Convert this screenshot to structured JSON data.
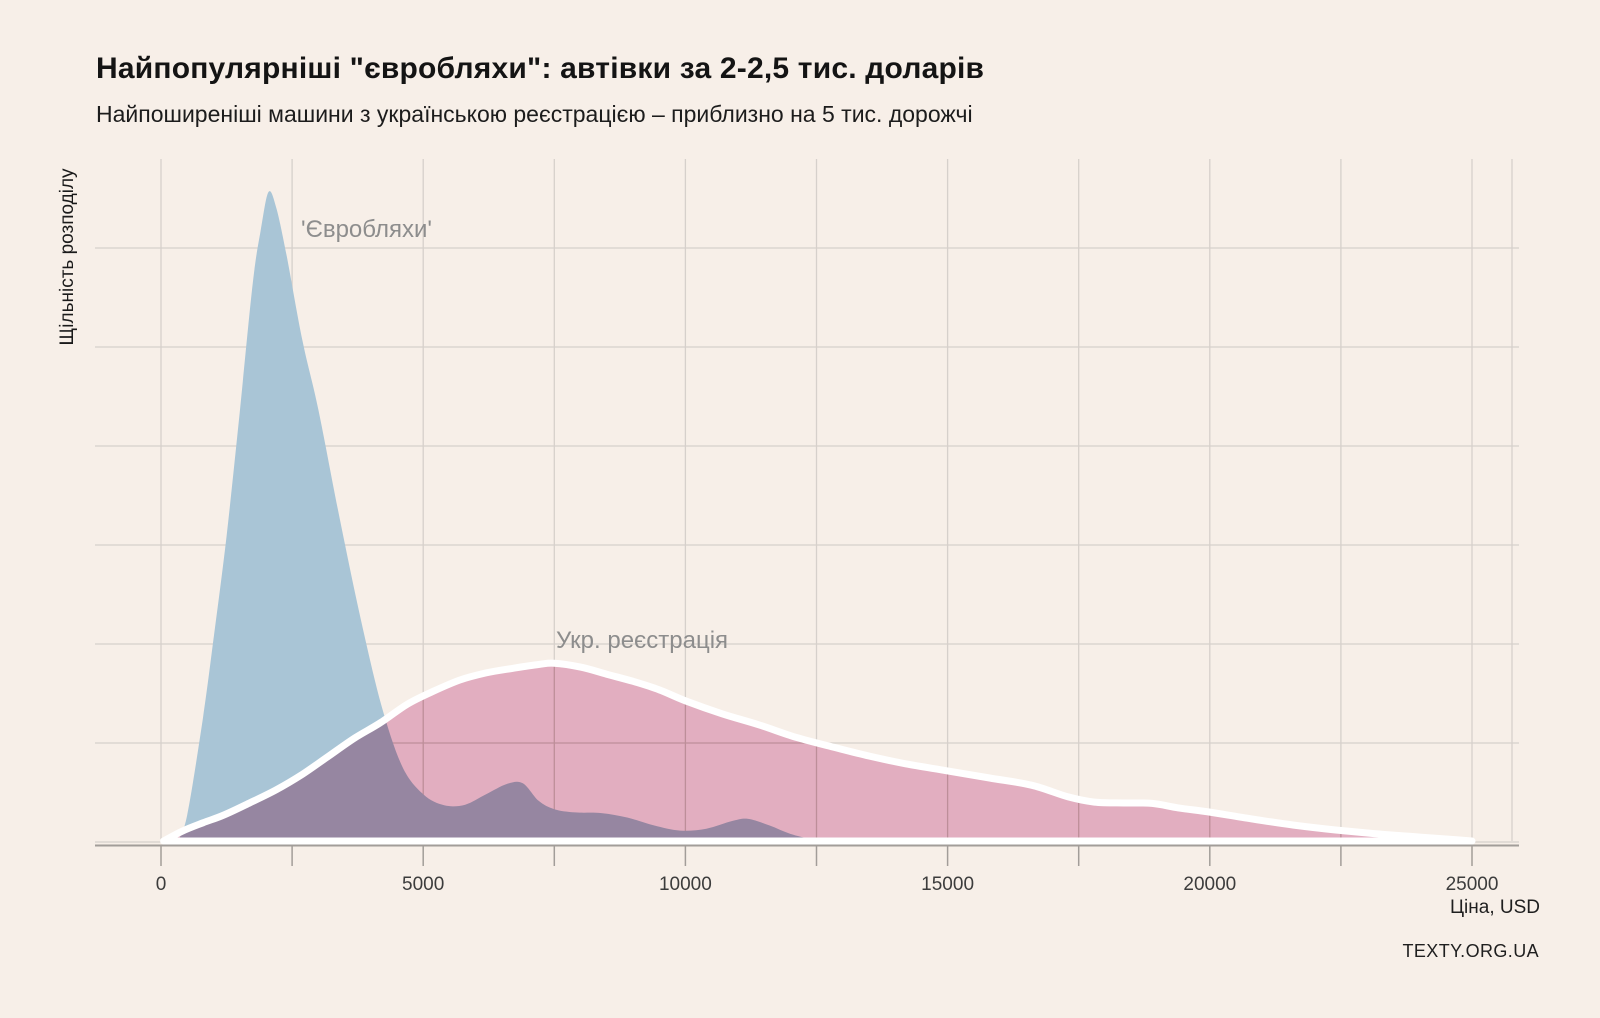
{
  "title": "Найпопулярніші \"євробляхи\": автівки за 2-2,5 тис. доларів",
  "subtitle": "Найпоширеніші машини з українською реєстрацією – приблизно на 5 тис. дорожчі",
  "y_axis_label": "Щільність розподілу",
  "x_axis_label": "Ціна, USD",
  "watermark": "TEXTY.ORG.UA",
  "series_labels": {
    "eurobliakhy": "'Євробляхи'",
    "ukr_registration": "Укр. реєстрація"
  },
  "colors": {
    "background": "#f7efe8",
    "eurobliakhy_fill": "#a9c5d6",
    "ukr_registration_fill": "#e2aec0",
    "overlap_visual": "#a98fa4",
    "curve_outline": "#ffffff",
    "gridline": "#d6d0cb",
    "axis": "#a29d99",
    "tick_text": "#3c3c3c",
    "series_label_text": "#8d8d8d",
    "text": "#1a1a1a"
  },
  "chart_data": {
    "type": "area",
    "subtype": "kernel-density",
    "title": "Найпопулярніші \"євробляхи\": автівки за 2-2,5 тис. доларів",
    "xlabel": "Ціна, USD",
    "ylabel": "Щільність розподілу",
    "x_ticks": [
      0,
      5000,
      10000,
      15000,
      20000,
      25000
    ],
    "x_minor_grid_step": 2500,
    "xlim": [
      0,
      25000
    ],
    "grid": true,
    "legend_position": "inline-labels",
    "series": [
      {
        "name": "'Євробляхи'",
        "color": "#a9c5d6",
        "peak_usd": 2050,
        "peak_rel_density": 1.0,
        "points": [
          [
            320,
            0
          ],
          [
            500,
            0.04
          ],
          [
            800,
            0.19
          ],
          [
            1000,
            0.31
          ],
          [
            1250,
            0.47
          ],
          [
            1500,
            0.66
          ],
          [
            1750,
            0.86
          ],
          [
            1900,
            0.94
          ],
          [
            2050,
            1.0
          ],
          [
            2200,
            0.975
          ],
          [
            2400,
            0.9
          ],
          [
            2700,
            0.77
          ],
          [
            3000,
            0.665
          ],
          [
            3400,
            0.5
          ],
          [
            3800,
            0.345
          ],
          [
            4200,
            0.21
          ],
          [
            4600,
            0.115
          ],
          [
            5000,
            0.072
          ],
          [
            5400,
            0.055
          ],
          [
            5800,
            0.056
          ],
          [
            6200,
            0.072
          ],
          [
            6600,
            0.088
          ],
          [
            6900,
            0.089
          ],
          [
            7200,
            0.062
          ],
          [
            7500,
            0.049
          ],
          [
            7900,
            0.044
          ],
          [
            8400,
            0.043
          ],
          [
            8900,
            0.036
          ],
          [
            9400,
            0.024
          ],
          [
            9900,
            0.016
          ],
          [
            10400,
            0.019
          ],
          [
            10900,
            0.031
          ],
          [
            11200,
            0.034
          ],
          [
            11600,
            0.024
          ],
          [
            12000,
            0.011
          ],
          [
            12400,
            0.003
          ],
          [
            12700,
            0
          ]
        ]
      },
      {
        "name": "Укр. реєстрація",
        "color": "#e2aec0",
        "outline": "#ffffff",
        "peak_usd": 7500,
        "peak_rel_density": 0.274,
        "points": [
          [
            50,
            0
          ],
          [
            400,
            0.015
          ],
          [
            800,
            0.028
          ],
          [
            1200,
            0.04
          ],
          [
            1700,
            0.059
          ],
          [
            2200,
            0.079
          ],
          [
            2700,
            0.103
          ],
          [
            3200,
            0.131
          ],
          [
            3700,
            0.159
          ],
          [
            4200,
            0.183
          ],
          [
            4700,
            0.211
          ],
          [
            5200,
            0.231
          ],
          [
            5700,
            0.248
          ],
          [
            6200,
            0.259
          ],
          [
            6700,
            0.266
          ],
          [
            7200,
            0.272
          ],
          [
            7500,
            0.274
          ],
          [
            8000,
            0.268
          ],
          [
            8500,
            0.257
          ],
          [
            9000,
            0.246
          ],
          [
            9500,
            0.233
          ],
          [
            10000,
            0.216
          ],
          [
            10700,
            0.196
          ],
          [
            11400,
            0.179
          ],
          [
            12100,
            0.16
          ],
          [
            12800,
            0.145
          ],
          [
            13500,
            0.131
          ],
          [
            14200,
            0.119
          ],
          [
            15000,
            0.108
          ],
          [
            15800,
            0.097
          ],
          [
            16600,
            0.086
          ],
          [
            17300,
            0.068
          ],
          [
            17800,
            0.06
          ],
          [
            18400,
            0.0585
          ],
          [
            18900,
            0.058
          ],
          [
            19400,
            0.051
          ],
          [
            20000,
            0.0445
          ],
          [
            20800,
            0.034
          ],
          [
            21600,
            0.0245
          ],
          [
            22400,
            0.017
          ],
          [
            23200,
            0.011
          ],
          [
            24000,
            0.006
          ],
          [
            24700,
            0.002
          ],
          [
            25000,
            0
          ]
        ]
      }
    ]
  }
}
